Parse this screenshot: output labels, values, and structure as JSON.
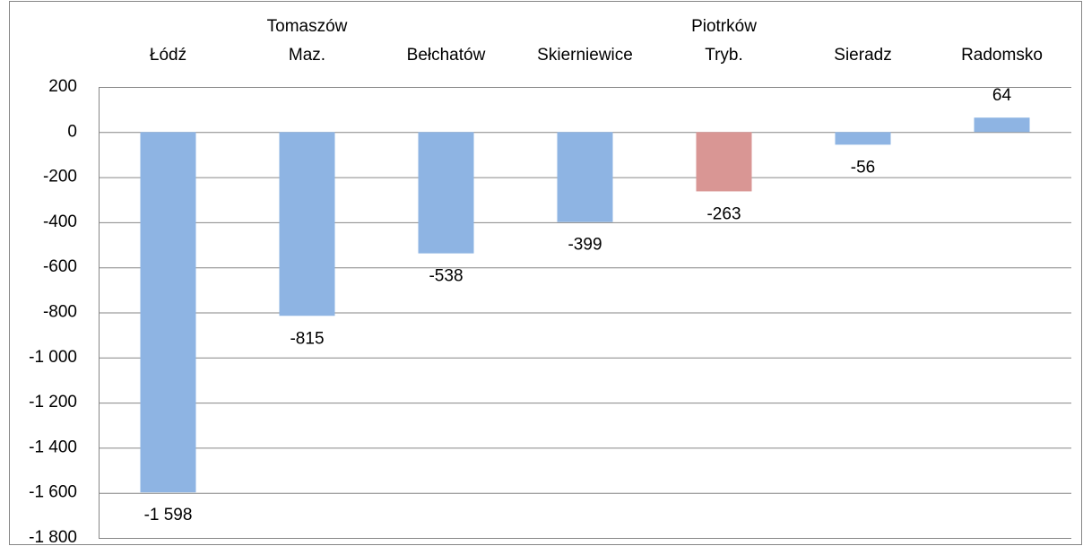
{
  "chart_data": {
    "type": "bar",
    "categories": [
      "Łódź",
      "Tomaszów Maz.",
      "Bełchatów",
      "Skierniewice",
      "Piotrków Tryb.",
      "Sieradz",
      "Radomsko"
    ],
    "values": [
      -1598,
      -815,
      -538,
      -399,
      -263,
      -56,
      64
    ],
    "value_labels": [
      "-1 598",
      "-815",
      "-538",
      "-399",
      "-263",
      "-56",
      "64"
    ],
    "colors": [
      "#8eb4e3",
      "#8eb4e3",
      "#8eb4e3",
      "#8eb4e3",
      "#d99694",
      "#8eb4e3",
      "#8eb4e3"
    ],
    "ylim": [
      -1800,
      200
    ],
    "yticks": [
      200,
      0,
      -200,
      -400,
      -600,
      -800,
      {
        "value": -1000,
        "label": "-1 000"
      },
      {
        "value": -1200,
        "label": "-1 200"
      },
      {
        "value": -1400,
        "label": "-1 400"
      },
      {
        "value": -1600,
        "label": "-1 600"
      },
      {
        "value": -1800,
        "label": "-1 800"
      }
    ],
    "grid": true
  }
}
